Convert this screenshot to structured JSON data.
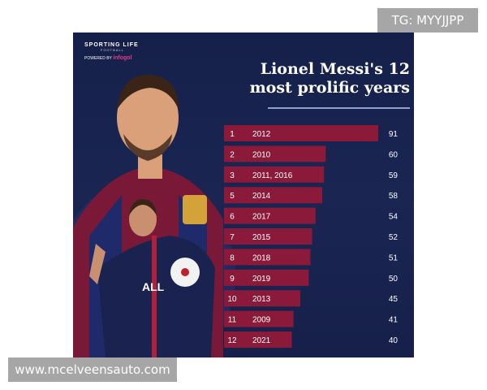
{
  "watermarks": {
    "top": "TG: MYYJJPP",
    "bottom": "www.mcelveensauto.com"
  },
  "brand": {
    "name": "SPORTING LIFE",
    "subtitle": "FOOTBALL",
    "powered_by": "POWERED BY",
    "partner": "infogol"
  },
  "colors": {
    "bar": "#8b1a3a",
    "background": "#16204a",
    "text": "#ffffff"
  },
  "chart_data": {
    "type": "bar",
    "orientation": "horizontal",
    "title": "Lionel Messi's 12 most prolific years",
    "title_lines": [
      "Lionel Messi's 12",
      "most prolific years"
    ],
    "ranks": [
      "1",
      "2",
      "3",
      "5",
      "6",
      "7",
      "8",
      "9",
      "10",
      "11",
      "12"
    ],
    "categories": [
      "2012",
      "2010",
      "2011, 2016",
      "2014",
      "2017",
      "2015",
      "2018",
      "2019",
      "2013",
      "2009",
      "2021"
    ],
    "values": [
      91,
      60,
      59,
      58,
      54,
      52,
      51,
      50,
      45,
      41,
      40
    ],
    "grid": false,
    "legend": "none"
  }
}
